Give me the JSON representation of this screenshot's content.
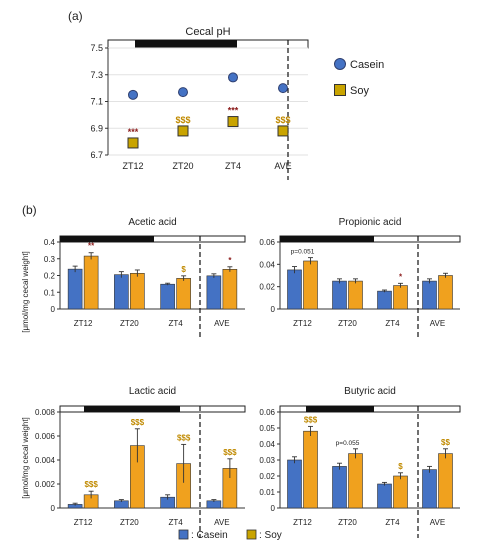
{
  "panel_labels": {
    "a": "(a)",
    "b": "(b)"
  },
  "legend_a": {
    "casein": "Casein",
    "soy": "Soy"
  },
  "legend_b": {
    "casein": ": Casein",
    "soy": ": Soy"
  },
  "colors": {
    "casein": "#4472c4",
    "soy": "#f0a11e",
    "soy_dark": "#c9a400",
    "asterisk": "#8b1a1a",
    "dollar": "#c08a00"
  },
  "ylabel_b": "[μmol/mg cecal weight]",
  "chart_data": [
    {
      "type": "scatter",
      "title": "Cecal pH",
      "categories": [
        "ZT12",
        "ZT20",
        "ZT4",
        "AVE"
      ],
      "ylim": [
        6.7,
        7.5
      ],
      "yticks": [
        "6.7",
        "6.9",
        "7.1",
        "7.3",
        "7.5"
      ],
      "series": [
        {
          "name": "Casein",
          "values": [
            7.15,
            7.17,
            7.28,
            7.2
          ]
        },
        {
          "name": "Soy",
          "values": [
            6.79,
            6.88,
            6.95,
            6.88
          ]
        }
      ],
      "annotations": [
        {
          "category": "ZT12",
          "text": "***",
          "kind": "star"
        },
        {
          "category": "ZT20",
          "text": "$$$",
          "kind": "dollar"
        },
        {
          "category": "ZT4",
          "text": "***",
          "kind": "star"
        },
        {
          "category": "AVE",
          "text": "$$$",
          "kind": "dollar"
        }
      ]
    },
    {
      "type": "bar",
      "title": "Acetic acid",
      "categories": [
        "ZT12",
        "ZT20",
        "ZT4",
        "AVE"
      ],
      "ylim": [
        0,
        0.4
      ],
      "yticks": [
        "0",
        "0.1",
        "0.2",
        "0.3",
        "0.4"
      ],
      "series": [
        {
          "name": "Casein",
          "values": [
            0.238,
            0.205,
            0.148,
            0.198
          ],
          "errors": [
            0.018,
            0.018,
            0.006,
            0.012
          ]
        },
        {
          "name": "Soy",
          "values": [
            0.316,
            0.213,
            0.183,
            0.237
          ],
          "errors": [
            0.02,
            0.02,
            0.015,
            0.015
          ]
        }
      ],
      "annotations": [
        {
          "category": "ZT12",
          "text": "**",
          "kind": "star"
        },
        {
          "category": "ZT4",
          "text": "$",
          "kind": "dollar"
        },
        {
          "category": "AVE",
          "text": "*",
          "kind": "star"
        }
      ]
    },
    {
      "type": "bar",
      "title": "Propionic acid",
      "categories": [
        "ZT12",
        "ZT20",
        "ZT4",
        "AVE"
      ],
      "ylim": [
        0,
        0.06
      ],
      "yticks": [
        "0",
        "0.02",
        "0.04",
        "0.06"
      ],
      "series": [
        {
          "name": "Casein",
          "values": [
            0.035,
            0.025,
            0.016,
            0.025
          ],
          "errors": [
            0.003,
            0.002,
            0.001,
            0.002
          ]
        },
        {
          "name": "Soy",
          "values": [
            0.043,
            0.025,
            0.021,
            0.03
          ],
          "errors": [
            0.003,
            0.002,
            0.002,
            0.002
          ]
        }
      ],
      "annotations": [
        {
          "category": "ZT12",
          "text": "p=0.051",
          "kind": "text"
        },
        {
          "category": "ZT4",
          "text": "*",
          "kind": "star"
        }
      ]
    },
    {
      "type": "bar",
      "title": "Lactic acid",
      "categories": [
        "ZT12",
        "ZT20",
        "ZT4",
        "AVE"
      ],
      "ylim": [
        0,
        0.008
      ],
      "yticks": [
        "0",
        "0.002",
        "0.004",
        "0.006",
        "0.008"
      ],
      "series": [
        {
          "name": "Casein",
          "values": [
            0.0003,
            0.0006,
            0.0009,
            0.0006
          ],
          "errors": [
            0.0001,
            0.0001,
            0.0002,
            0.0001
          ]
        },
        {
          "name": "Soy",
          "values": [
            0.0011,
            0.0052,
            0.0037,
            0.0033
          ],
          "errors": [
            0.0003,
            0.0014,
            0.0016,
            0.0008
          ]
        }
      ],
      "annotations": [
        {
          "category": "ZT12",
          "text": "$$$",
          "kind": "dollar"
        },
        {
          "category": "ZT20",
          "text": "$$$",
          "kind": "dollar"
        },
        {
          "category": "ZT4",
          "text": "$$$",
          "kind": "dollar"
        },
        {
          "category": "AVE",
          "text": "$$$",
          "kind": "dollar"
        }
      ]
    },
    {
      "type": "bar",
      "title": "Butyric acid",
      "categories": [
        "ZT12",
        "ZT20",
        "ZT4",
        "AVE"
      ],
      "ylim": [
        0,
        0.06
      ],
      "yticks": [
        "0",
        "0.01",
        "0.02",
        "0.03",
        "0.04",
        "0.05",
        "0.06"
      ],
      "series": [
        {
          "name": "Casein",
          "values": [
            0.03,
            0.026,
            0.015,
            0.024
          ],
          "errors": [
            0.002,
            0.002,
            0.001,
            0.002
          ]
        },
        {
          "name": "Soy",
          "values": [
            0.048,
            0.034,
            0.02,
            0.034
          ],
          "errors": [
            0.003,
            0.003,
            0.002,
            0.003
          ]
        }
      ],
      "annotations": [
        {
          "category": "ZT12",
          "text": "$$$",
          "kind": "dollar"
        },
        {
          "category": "ZT20",
          "text": "p=0.055",
          "kind": "text"
        },
        {
          "category": "ZT4",
          "text": "$",
          "kind": "dollar"
        },
        {
          "category": "AVE",
          "text": "$$",
          "kind": "dollar"
        }
      ]
    }
  ]
}
